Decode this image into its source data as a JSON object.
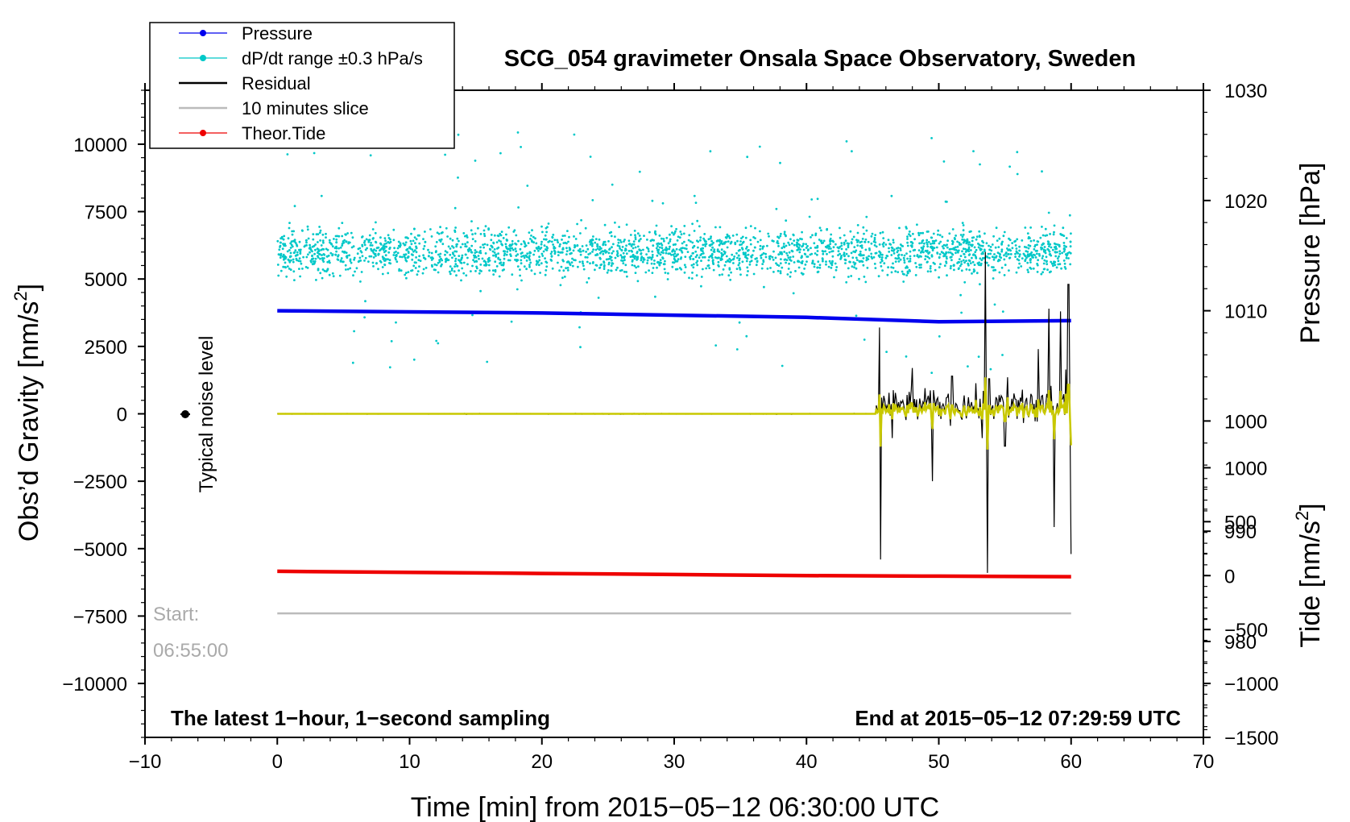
{
  "chart_data": {
    "type": "line",
    "title": "SCG_054 gravimeter Onsala Space Observatory, Sweden",
    "xlabel": "Time [min] from 2015−05−12 06:30:00 UTC",
    "ylabel_left_main": "Obs’d Gravity [nm/s",
    "ylabel_left_sup": "2",
    "ylabel_left_end": "]",
    "ylabel_right_top": "Pressure [hPa]",
    "ylabel_right_bottom_main": "Tide [nm/s",
    "ylabel_right_bottom_sup": "2",
    "ylabel_right_bottom_end": "]",
    "xlim": [
      -10,
      70
    ],
    "ylim": [
      -12000,
      12000
    ],
    "pressure_ylim": [
      971.3,
      1030
    ],
    "tide_ylim": [
      -1500,
      4500
    ],
    "x_ticks": [
      "−10",
      "0",
      "10",
      "20",
      "30",
      "40",
      "50",
      "60",
      "70"
    ],
    "x_tick_values": [
      -10,
      0,
      10,
      20,
      30,
      40,
      50,
      60,
      70
    ],
    "y_ticks": [
      "10000",
      "7500",
      "5000",
      "2500",
      "0",
      "−2500",
      "−5000",
      "−7500",
      "−10000"
    ],
    "y_tick_values": [
      10000,
      7500,
      5000,
      2500,
      0,
      -2500,
      -5000,
      -7500,
      -10000
    ],
    "pressure_ticks": [
      "1030",
      "1020",
      "1010",
      "1000",
      "990",
      "980"
    ],
    "pressure_tick_values": [
      1030,
      1020,
      1010,
      1000,
      990,
      980
    ],
    "tide_ticks": [
      "1000",
      "500",
      "0",
      "−500",
      "−1000",
      "−1500"
    ],
    "tide_tick_values": [
      1000,
      500,
      0,
      -500,
      -1000,
      -1500
    ],
    "legend": [
      {
        "name": "Pressure",
        "color": "#0000ee",
        "marker": true
      },
      {
        "name": "dP/dt range ±0.3 hPa/s",
        "color": "#00c8c8",
        "marker": true
      },
      {
        "name": "Residual",
        "color": "#000000",
        "marker": false
      },
      {
        "name": "10 minutes slice",
        "color": "#bbbbbb",
        "marker": false
      },
      {
        "name": "Theor.Tide",
        "color": "#ee0000",
        "marker": true
      }
    ],
    "series": [
      {
        "name": "Pressure",
        "axis": "pressure",
        "color": "#0000ee",
        "x": [
          0,
          10,
          20,
          30,
          40,
          50,
          60
        ],
        "y": [
          1010.0,
          1009.9,
          1009.8,
          1009.6,
          1009.4,
          1009.0,
          1009.1
        ]
      },
      {
        "name": "dP/dt range ±0.3 hPa/s",
        "axis": "gravity",
        "color": "#00c8c8",
        "center": 6000,
        "spread": 1100
      },
      {
        "name": "Residual",
        "axis": "gravity",
        "color": "#000000",
        "x": [
          0,
          45.2,
          45.5,
          45.6,
          45.7,
          46.5,
          48,
          49.5,
          51,
          53.3,
          53.5,
          53.7,
          53.8,
          55,
          57.5,
          58.3,
          58.7,
          59.2,
          59.8,
          60
        ],
        "y": [
          0,
          0,
          3200,
          -5400,
          600,
          -900,
          1700,
          -2500,
          1400,
          -900,
          6000,
          -5900,
          1300,
          -1200,
          2400,
          3900,
          -4200,
          3800,
          4800,
          -5200
        ]
      },
      {
        "name": "Residual smoothed",
        "axis": "gravity",
        "color": "#c8c800"
      },
      {
        "name": "10 minutes slice",
        "axis": "gravity",
        "color": "#bbbbbb",
        "x": [
          0,
          60
        ],
        "y": [
          -7400,
          -7400
        ]
      },
      {
        "name": "Theor.Tide",
        "axis": "tide",
        "color": "#ee0000",
        "x": [
          0,
          10,
          20,
          30,
          40,
          50,
          60
        ],
        "y": [
          40,
          30,
          20,
          10,
          0,
          -5,
          -10
        ]
      }
    ],
    "annotations": {
      "noise_label": "Typical noise level",
      "start_label": "Start:",
      "start_time": "06:55:00",
      "bottom_left": "The latest 1−hour, 1−second sampling",
      "bottom_right": "End at 2015−05−12 07:29:59 UTC"
    }
  }
}
